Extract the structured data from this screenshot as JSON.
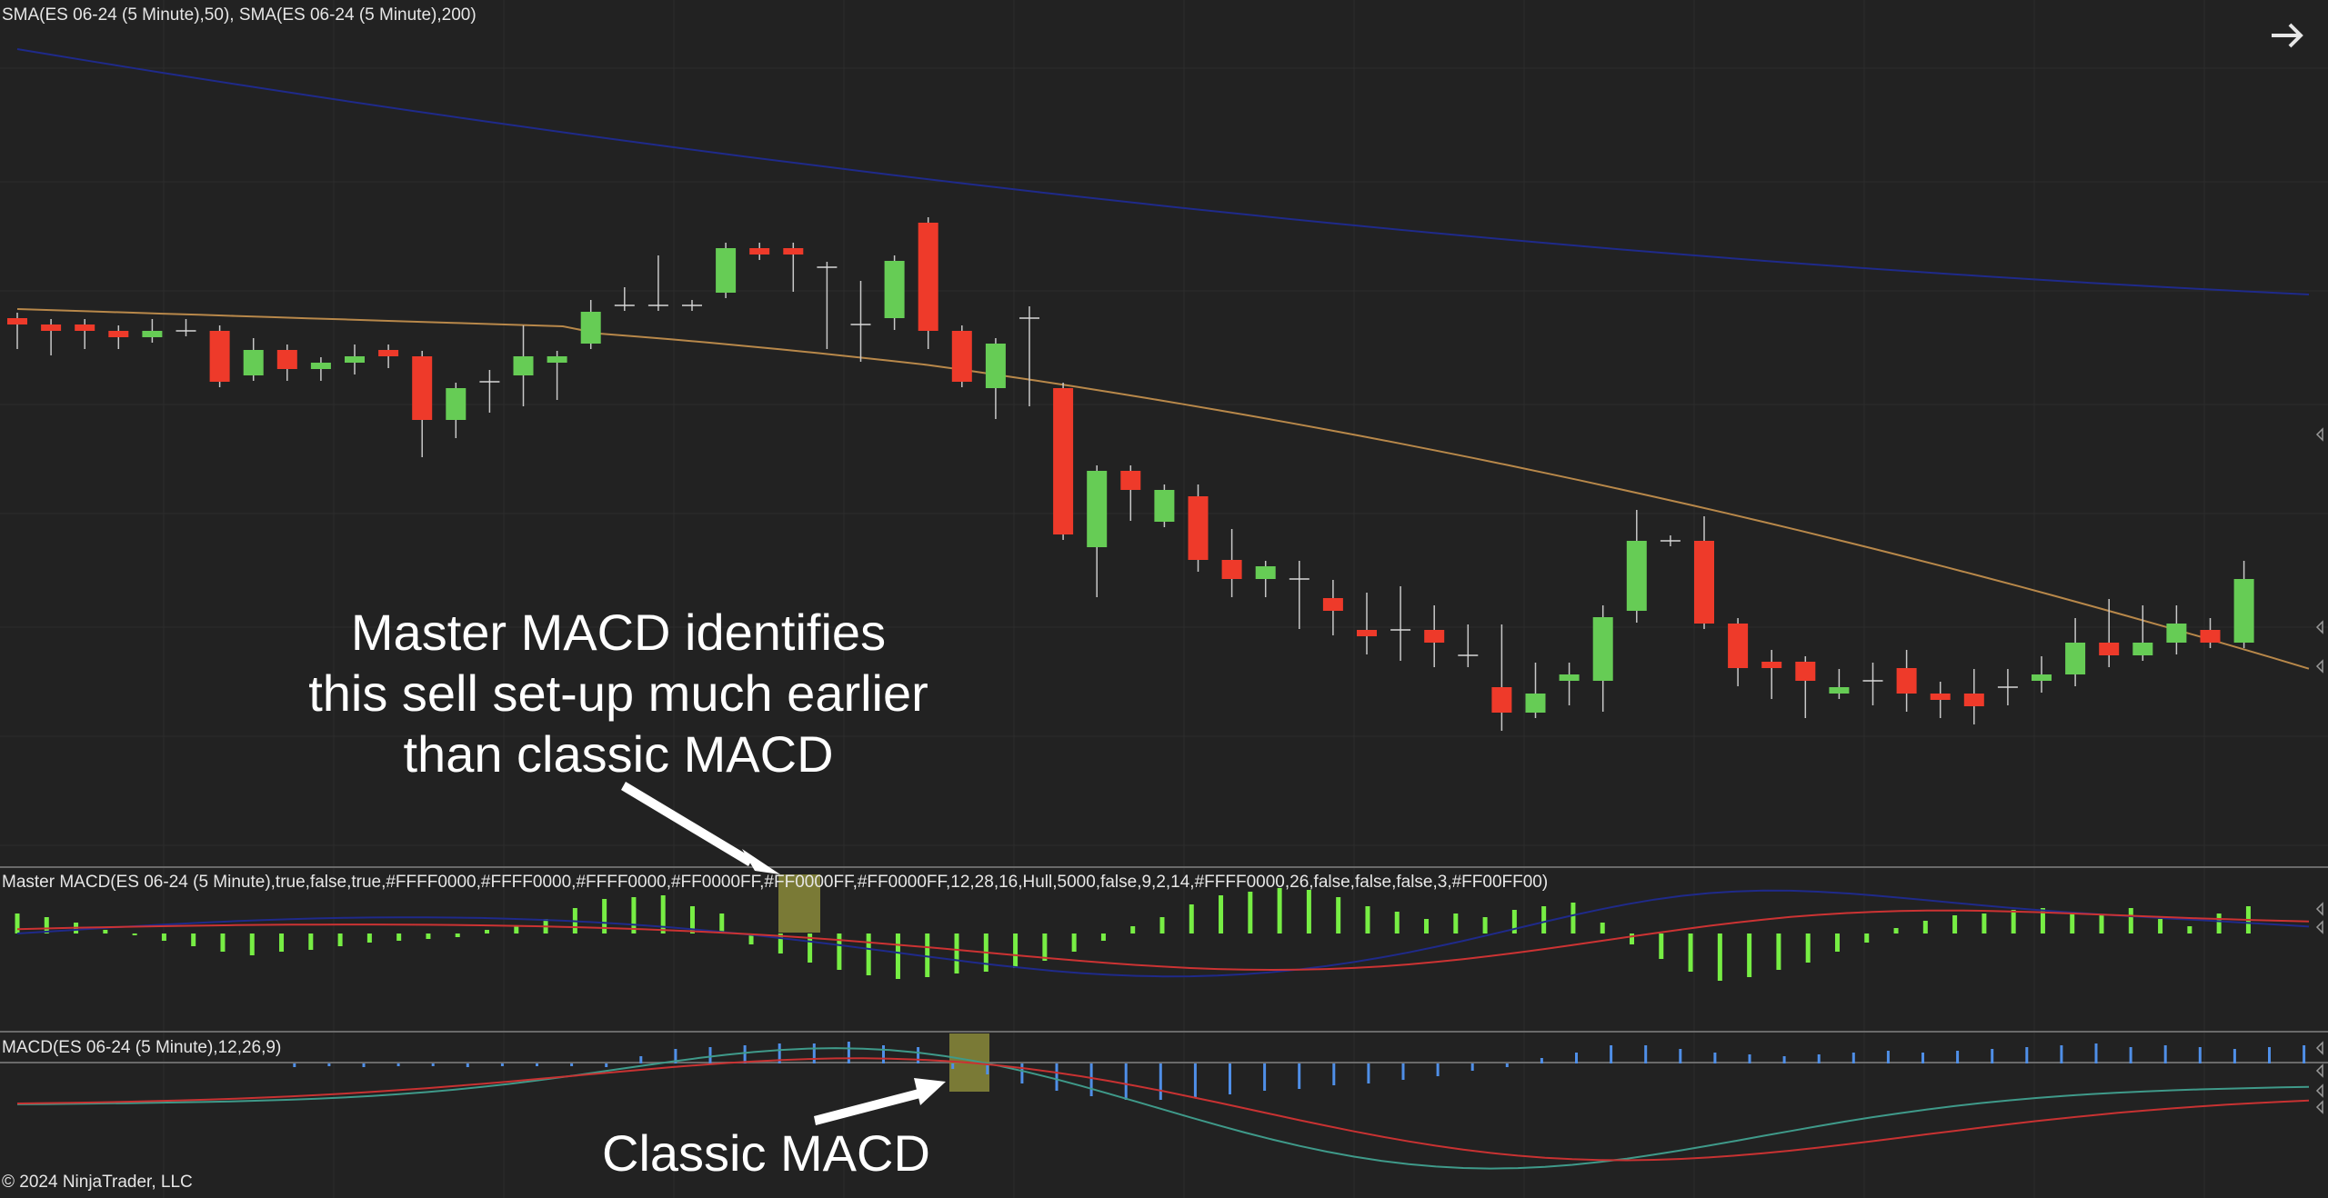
{
  "labels": {
    "price_panel": "SMA(ES 06-24 (5 Minute),50), SMA(ES 06-24 (5 Minute),200)",
    "master_panel": "Master MACD(ES 06-24 (5 Minute),true,false,true,#FFFF0000,#FFFF0000,#FFFF0000,#FF0000FF,#FF0000FF,#FF0000FF,12,28,16,Hull,5000,false,9,2,14,#FFFF0000,26,false,false,false,3,#FF00FF00)",
    "macd_panel": "MACD(ES 06-24 (5 Minute),12,26,9)",
    "copyright": "© 2024 NinjaTrader, LLC"
  },
  "annotations": {
    "master_line1": "Master MACD identifies",
    "master_line2": "this sell set-up much earlier",
    "master_line3": "than classic MACD",
    "classic": "Classic MACD"
  },
  "colors": {
    "background": "#222222",
    "up": "#66cc55",
    "down": "#ee3a2a",
    "sma50": "#b8884a",
    "sma200": "#1f2a8a",
    "master_hist": "#77ee44",
    "macd_hist": "#4f8fe8",
    "highlight": "#8a8a3a"
  },
  "chart_data": {
    "type": "candlestick",
    "title": "ES 06-24 (5 Minute)",
    "ohlc": [
      [
        10,
        9,
        10,
        6
      ],
      [
        9,
        8,
        9,
        5
      ],
      [
        9,
        8,
        9,
        6
      ],
      [
        8,
        7,
        8,
        6
      ],
      [
        7,
        8,
        9,
        7
      ],
      [
        8,
        8,
        9,
        8
      ],
      [
        8,
        0,
        0,
        0
      ],
      [
        1,
        5,
        6,
        1
      ],
      [
        5,
        2,
        2,
        1
      ],
      [
        2,
        3,
        3,
        1
      ],
      [
        3,
        4,
        5,
        2
      ],
      [
        5,
        4,
        4,
        3
      ],
      [
        4,
        -6,
        -6,
        -11
      ],
      [
        -6,
        -1,
        -1,
        -8
      ],
      [
        0,
        0,
        1,
        -4
      ],
      [
        1,
        4,
        8,
        -3
      ],
      [
        3,
        4,
        4,
        -2
      ],
      [
        6,
        11,
        12,
        6
      ],
      [
        12,
        12,
        14,
        12
      ],
      [
        12,
        12,
        19,
        12
      ],
      [
        12,
        12,
        12,
        12
      ],
      [
        14,
        21,
        21,
        14
      ],
      [
        21,
        20,
        21,
        20
      ],
      [
        21,
        20,
        20,
        15
      ],
      [
        18,
        18,
        18,
        6
      ],
      [
        9,
        9,
        15,
        4
      ],
      [
        10,
        19,
        19,
        9
      ],
      [
        25,
        8,
        22,
        6
      ],
      [
        8,
        0,
        2,
        2
      ],
      [
        -1,
        6,
        6,
        -5
      ],
      [
        10,
        10,
        11,
        -3
      ],
      [
        -1,
        -24,
        -24,
        -24
      ],
      [
        -26,
        -14,
        -15,
        -33
      ],
      [
        -14,
        -17,
        -14,
        -21
      ],
      [
        -22,
        -17,
        -17,
        -21
      ],
      [
        -18,
        -28,
        -17,
        -29
      ],
      [
        -28,
        -31,
        -24,
        -33
      ],
      [
        -31,
        -29,
        -29,
        -33
      ],
      [
        -31,
        -31,
        -29,
        -38
      ],
      [
        -34,
        -36,
        -32,
        -39
      ],
      [
        -39,
        -40,
        -34,
        -42
      ],
      [
        -39,
        -39,
        -33,
        -43
      ],
      [
        -39,
        -41,
        -36,
        -44
      ],
      [
        -43,
        -43,
        -39,
        -44
      ],
      [
        -48,
        -52,
        -39,
        -54
      ],
      [
        -52,
        -49,
        -45,
        -52
      ],
      [
        -47,
        -46,
        -45,
        -50
      ],
      [
        -47,
        -37,
        -36,
        -51
      ],
      [
        -36,
        -25,
        -21,
        -37
      ],
      [
        -25,
        -25,
        -25,
        -25
      ],
      [
        -25,
        -38,
        -22,
        -38
      ],
      [
        -38,
        -45,
        -38,
        -47
      ],
      [
        -44,
        -45,
        -43,
        -49
      ],
      [
        -44,
        -47,
        -44,
        -52
      ],
      [
        -49,
        -48,
        -46,
        -49
      ],
      [
        -47,
        -47,
        -45,
        -50
      ],
      [
        -45,
        -49,
        -43,
        -51
      ],
      [
        -49,
        -50,
        -48,
        -52
      ],
      [
        -49,
        -51,
        -46,
        -53
      ],
      [
        -48,
        -48,
        -46,
        -50
      ],
      [
        -47,
        -46,
        -44,
        -48
      ],
      [
        -46,
        -41,
        -38,
        -47
      ],
      [
        -41,
        -43,
        -35,
        -44
      ],
      [
        -43,
        -41,
        -36,
        -43
      ],
      [
        -41,
        -38,
        -36,
        -42
      ],
      [
        -39,
        -41,
        -38,
        -41
      ],
      [
        -41,
        -31,
        -29,
        -41
      ]
    ],
    "sma50": [],
    "sma200": []
  }
}
